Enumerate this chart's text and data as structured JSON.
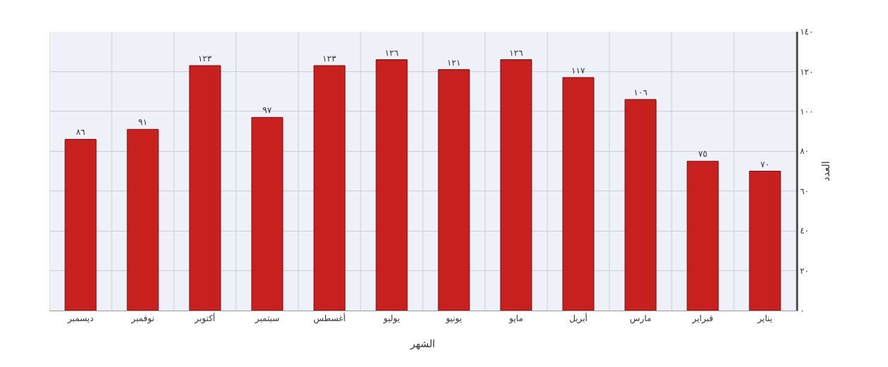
{
  "chart_data": {
    "type": "bar",
    "xlabel": "الشهر",
    "ylabel": "العدد",
    "categories": [
      "ديسمبر",
      "نوفمبر",
      "أكتوبر",
      "سبتمبر",
      "أغسطس",
      "يوليو",
      "يونيو",
      "مايو",
      "أبريل",
      "مارس",
      "فبراير",
      "يناير"
    ],
    "values": [
      86,
      91,
      123,
      97,
      123,
      126,
      121,
      126,
      117,
      106,
      75,
      70
    ],
    "value_labels": [
      "٨٦",
      "٩١",
      "١٢٣",
      "٩٧",
      "١٢٣",
      "١٢٦",
      "١٢١",
      "١٢٦",
      "١١٧",
      "١٠٦",
      "٧٥",
      "٧٠"
    ],
    "color": "#c8201e",
    "ylim": [
      0,
      140
    ],
    "yticks": [
      {
        "value": 0,
        "label": "٠"
      },
      {
        "value": 20,
        "label": "٢٠"
      },
      {
        "value": 40,
        "label": "٤٠"
      },
      {
        "value": 60,
        "label": "٦٠"
      },
      {
        "value": 80,
        "label": "٨٠"
      },
      {
        "value": 100,
        "label": "١٠٠"
      },
      {
        "value": 120,
        "label": "١٢٠"
      },
      {
        "value": 140,
        "label": "١٤٠"
      }
    ],
    "grid": true,
    "legend": false
  }
}
